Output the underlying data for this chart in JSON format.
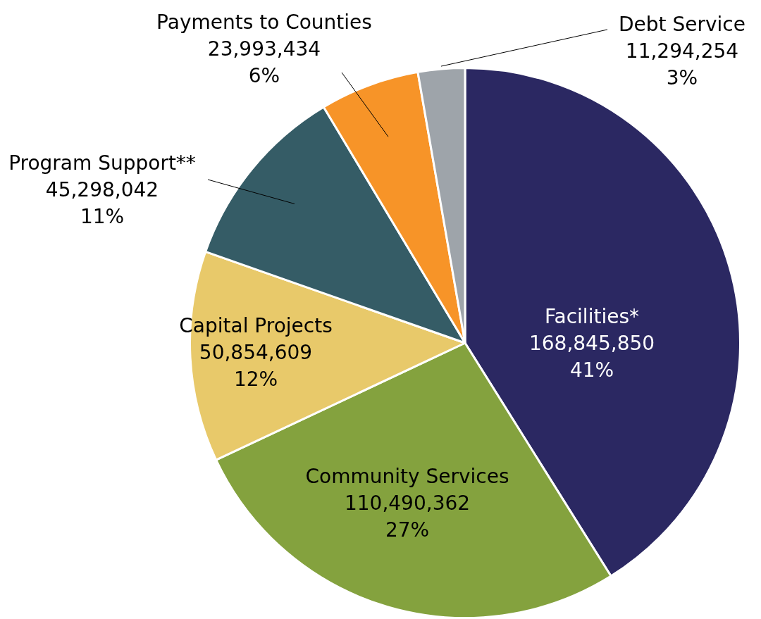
{
  "chart_data": {
    "type": "pie",
    "categories": [
      "Facilities*",
      "Community Services",
      "Capital Projects",
      "Program Support**",
      "Payments to Counties",
      "Debt Service"
    ],
    "values": [
      168845850,
      110490362,
      50854609,
      45298042,
      23993434,
      11294254
    ],
    "colors": [
      "#2b2862",
      "#84a23e",
      "#e8c96a",
      "#355c66",
      "#f79428",
      "#9ea4aa"
    ],
    "value_labels": [
      "168,845,850\n41%",
      "110,490,362\n27%",
      "50,854,609\n12%",
      "45,298,042\n11%",
      "23,993,434\n6%",
      "11,294,254\n3%"
    ]
  }
}
